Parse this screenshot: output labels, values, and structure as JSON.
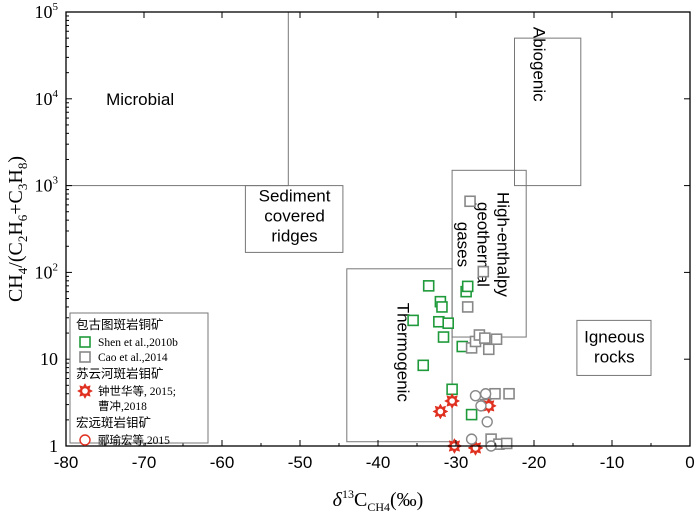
{
  "chart_data": {
    "type": "scatter",
    "x_axis": {
      "label_prefix": "δ",
      "label_sup": "13",
      "label_main": "C",
      "label_sub": "CH4",
      "label_suffix": "(‰)",
      "range": [
        -80,
        0
      ],
      "ticks": [
        -80,
        -70,
        -60,
        -50,
        -40,
        -30,
        -20,
        -10,
        0
      ],
      "tick_labels": [
        "-80",
        "-70",
        "-60",
        "-50",
        "-40",
        "-30",
        "-20",
        "-10",
        "0"
      ]
    },
    "y_axis": {
      "label_parts": [
        "CH",
        "4",
        "/(C",
        "2",
        "H",
        "6",
        "+C",
        "3",
        "H",
        "8",
        ")"
      ],
      "scale": "log",
      "range": [
        1,
        100000
      ],
      "ticks": [
        {
          "value": 1,
          "base": "1",
          "exp": ""
        },
        {
          "value": 10,
          "base": "10",
          "exp": ""
        },
        {
          "value": 100,
          "base": "10",
          "exp": "2"
        },
        {
          "value": 1000,
          "base": "10",
          "exp": "3"
        },
        {
          "value": 10000,
          "base": "10",
          "exp": "4"
        },
        {
          "value": 100000,
          "base": "10",
          "exp": "5"
        }
      ]
    },
    "fields": [
      {
        "name": "Microbial",
        "lines": [
          "Microbial"
        ],
        "x": [
          -80,
          -51.5
        ],
        "y": [
          1000,
          100000
        ],
        "label_at": [
          -70.5,
          10000
        ]
      },
      {
        "name": "Sediment covered ridges",
        "lines": [
          "Sediment",
          "covered",
          "ridges"
        ],
        "x": [
          -57,
          -44.5
        ],
        "y": [
          170,
          1000
        ],
        "label_at": [
          -50.7,
          450
        ]
      },
      {
        "name": "Abiogenic",
        "lines": [
          "Abiogenic"
        ],
        "x": [
          -22.5,
          -14
        ],
        "y": [
          1000,
          50000
        ],
        "label_at": [
          -19.3,
          25000
        ],
        "rotate": 90
      },
      {
        "name": "High-enthalpy geothermal gases",
        "lines": [
          "High-enthalpy",
          "geothermal",
          "gases"
        ],
        "x": [
          -30.5,
          -21
        ],
        "y": [
          18,
          1500
        ],
        "label_at": [
          -26.5,
          210
        ],
        "rotate": 90
      },
      {
        "name": "Thermogenic",
        "lines": [
          "Thermogenic"
        ],
        "x": [
          -44,
          -30.5
        ],
        "y": [
          1.12,
          110
        ],
        "label_at": [
          -36.7,
          12
        ],
        "rotate": 90
      },
      {
        "name": "Igneous rocks",
        "lines": [
          "Igneous",
          "rocks"
        ],
        "x": [
          -14.5,
          -5
        ],
        "y": [
          6.5,
          28
        ],
        "label_at": [
          -9.7,
          14
        ]
      }
    ],
    "series": [
      {
        "name": "Shen et al.,2010b",
        "group": "包古图斑岩铜矿",
        "marker": "square",
        "color": "#1f9a3a",
        "points": [
          [
            -35.5,
            28
          ],
          [
            -33.5,
            70
          ],
          [
            -32,
            46
          ],
          [
            -31.8,
            40
          ],
          [
            -32.2,
            27
          ],
          [
            -31.6,
            18
          ],
          [
            -31,
            26
          ],
          [
            -30.5,
            4.5
          ],
          [
            -29.2,
            14
          ],
          [
            -28.7,
            60
          ],
          [
            -28.5,
            69
          ],
          [
            -28,
            2.3
          ],
          [
            -34.2,
            8.5
          ]
        ]
      },
      {
        "name": "Cao et al.,2014",
        "group": "",
        "marker": "square",
        "color": "#888888",
        "points": [
          [
            -28.5,
            40
          ],
          [
            -28.2,
            660
          ],
          [
            -28,
            13.5
          ],
          [
            -27.5,
            16
          ],
          [
            -27,
            19
          ],
          [
            -26.5,
            102
          ],
          [
            -26.3,
            17.5
          ],
          [
            -25.8,
            13
          ],
          [
            -25.5,
            1.2
          ],
          [
            -25,
            4
          ],
          [
            -24.8,
            17
          ],
          [
            -24.5,
            1.05
          ],
          [
            -23.5,
            1.07
          ],
          [
            -23.2,
            4
          ],
          [
            -26.2,
            3
          ]
        ]
      },
      {
        "name": "钟世华等, 2015; 曹冲,2018",
        "group": "苏云河斑岩钼矿",
        "marker": "star",
        "color": "#e03020",
        "points": [
          [
            -32,
            2.5
          ],
          [
            -30.5,
            3.3
          ],
          [
            -30.2,
            1
          ],
          [
            -27.5,
            0.95
          ],
          [
            -25.8,
            2.9
          ]
        ]
      },
      {
        "name": "郦瑜宏等,2015",
        "group": "宏远斑岩钼矿",
        "marker": "circle",
        "color": "#888888",
        "points": [
          [
            -28,
            1.2
          ],
          [
            -27.5,
            3.8
          ],
          [
            -26.2,
            4
          ],
          [
            -26,
            1.9
          ],
          [
            -25.5,
            1
          ],
          [
            -26.8,
            2.9
          ]
        ]
      }
    ],
    "legend": {
      "groups": [
        {
          "title": "包古图斑岩铜矿",
          "entries": [
            {
              "label": "Shen et al.,2010b",
              "marker": "square",
              "color": "#1f9a3a"
            },
            {
              "label": "Cao et al.,2014",
              "marker": "square",
              "color": "#888888"
            }
          ]
        },
        {
          "title": "苏云河斑岩钼矿",
          "entries": [
            {
              "label": "钟世华等, 2015;",
              "label2": "曹冲,2018",
              "marker": "star",
              "color": "#e03020"
            }
          ]
        },
        {
          "title": "宏远斑岩钼矿",
          "entries": [
            {
              "label": "郦瑜宏等,2015",
              "marker": "circle-red",
              "color": "#e03020"
            }
          ]
        }
      ]
    }
  }
}
